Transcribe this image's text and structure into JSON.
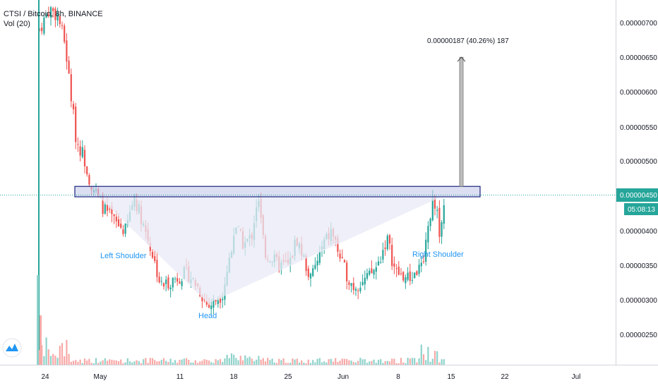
{
  "header": {
    "symbol_line": "CTSI / Bitcoin, 8h, BINANCE",
    "volume_label": "Vol (20)"
  },
  "price_axis": {
    "ticks": [
      "0.00000700",
      "0.00000650",
      "0.00000600",
      "0.00000550",
      "0.00000500",
      "0.00000450",
      "0.00000400",
      "0.00000350",
      "0.00000300",
      "0.00000250"
    ],
    "current_price": "0.00000450",
    "countdown": "05:08:13"
  },
  "time_axis": {
    "ticks": [
      "24",
      "May",
      "11",
      "18",
      "25",
      "Jun",
      "8",
      "15",
      "22",
      "Jul"
    ]
  },
  "annotations": {
    "left_shoulder": "Left Shoulder",
    "head": "Head",
    "right_shoulder": "Right Shoulder",
    "measure": "0.00000187 (40.26%) 187"
  },
  "colors": {
    "up": "#26a69a",
    "down": "#ef5350",
    "up_volume": "#8fd3cb",
    "down_volume": "#f7a9a7",
    "neckline_box": "#1a237e",
    "neckline_fill": "#c5cae9",
    "pattern_fill": "#e8eaf6",
    "label_blue": "#2196f3",
    "price_tag": "#26a69a"
  },
  "chart_data": {
    "type": "candlestick",
    "symbol": "CTSI / Bitcoin",
    "interval": "8h",
    "exchange": "BINANCE",
    "x_ticks": [
      "24",
      "May",
      "11",
      "18",
      "25",
      "Jun",
      "8",
      "15",
      "22",
      "Jul"
    ],
    "y_ticks": [
      7e-06,
      6.5e-06,
      6e-06,
      5.5e-06,
      5e-06,
      4.5e-06,
      4e-06,
      3.5e-06,
      3e-06,
      2.5e-06
    ],
    "ylim": [
      2.15e-06,
      7.35e-06
    ],
    "current_price": 4.5e-06,
    "neckline_zone": [
      4.49e-06,
      4.64e-06
    ],
    "measured_move": {
      "from": 4.64e-06,
      "to": 6.5e-06,
      "change": 1.87e-06,
      "percent": 40.26
    },
    "pattern": [
      "Left Shoulder",
      "Head",
      "Right Shoulder"
    ],
    "candles_close_approx": [
      7.1e-06,
      6.9e-06,
      6.6e-06,
      5.8e-06,
      5.3e-06,
      5e-06,
      4.6e-06,
      4.4e-06,
      4.2e-06,
      4e-06,
      4.5e-06,
      3.9e-06,
      3.4e-06,
      3.3e-06,
      3.2e-06,
      3e-06,
      3.4e-06,
      4e-06,
      3.8e-06,
      4.6e-06,
      3.7e-06,
      3.6e-06,
      3.5e-06,
      3.9e-06,
      3.4e-06,
      3.5e-06,
      3.3e-06,
      3.2e-06,
      3.4e-06,
      3.7e-06,
      3.4e-06,
      3.6e-06,
      4.4e-06,
      4.2e-06,
      4.6e-06
    ]
  }
}
